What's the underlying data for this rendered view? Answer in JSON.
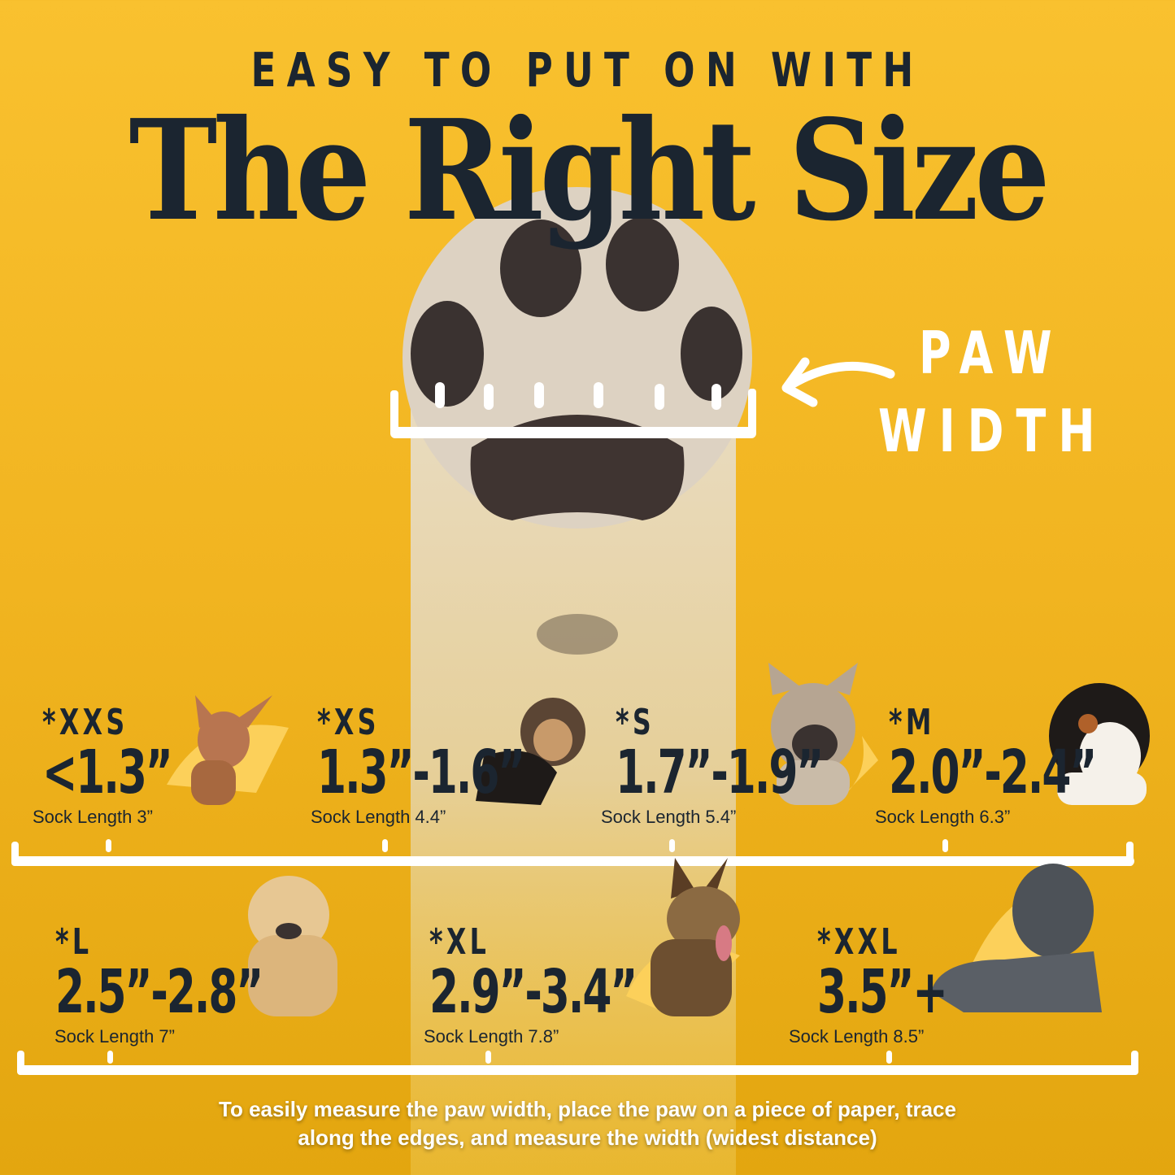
{
  "header": {
    "kicker": "EASY TO PUT ON WITH",
    "title": "The Right Size"
  },
  "paw_label": {
    "line1": "PAW",
    "line2": "WIDTH"
  },
  "sizes": [
    {
      "label": "*XXS",
      "width": "<1.3”",
      "sock": "Sock Length 3”"
    },
    {
      "label": "*XS",
      "width": "1.3”-1.6”",
      "sock": "Sock Length 4.4”"
    },
    {
      "label": "*S",
      "width": "1.7”-1.9”",
      "sock": "Sock Length 5.4”"
    },
    {
      "label": "*M",
      "width": "2.0”-2.4”",
      "sock": "Sock Length 6.3”"
    },
    {
      "label": "*L",
      "width": "2.5”-2.8”",
      "sock": "Sock Length 7”"
    },
    {
      "label": "*XL",
      "width": "2.9”-3.4”",
      "sock": "Sock Length 7.8”"
    },
    {
      "label": "*XXL",
      "width": "3.5”+",
      "sock": "Sock Length 8.5”"
    }
  ],
  "footer": {
    "line1": "To easily measure the paw width, place the paw on a piece of paper, trace",
    "line2": "along the edges, and measure the width (widest distance)"
  },
  "colors": {
    "background": "#f1b420",
    "text": "#1b2530",
    "accent": "#ffffff"
  }
}
